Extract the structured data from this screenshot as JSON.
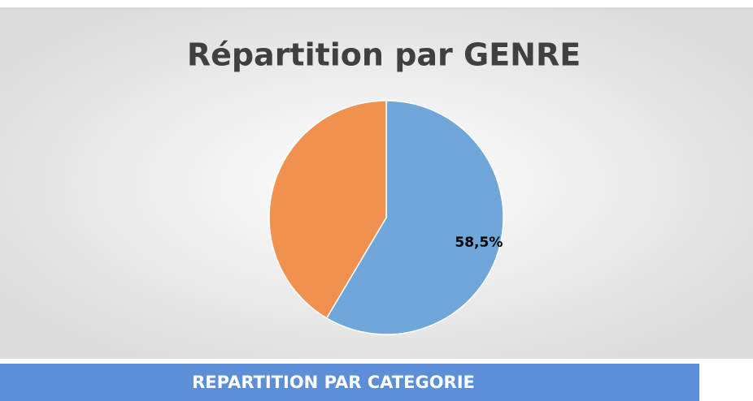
{
  "chart_data": {
    "type": "pie",
    "title": "Répartition par GENRE",
    "values": [
      58.5,
      41.5
    ],
    "value_labels": [
      "58,5%",
      null
    ],
    "colors": [
      "#70a7da",
      "#f0914f"
    ]
  },
  "section_header": "REPARTITION PAR CATEGORIE"
}
